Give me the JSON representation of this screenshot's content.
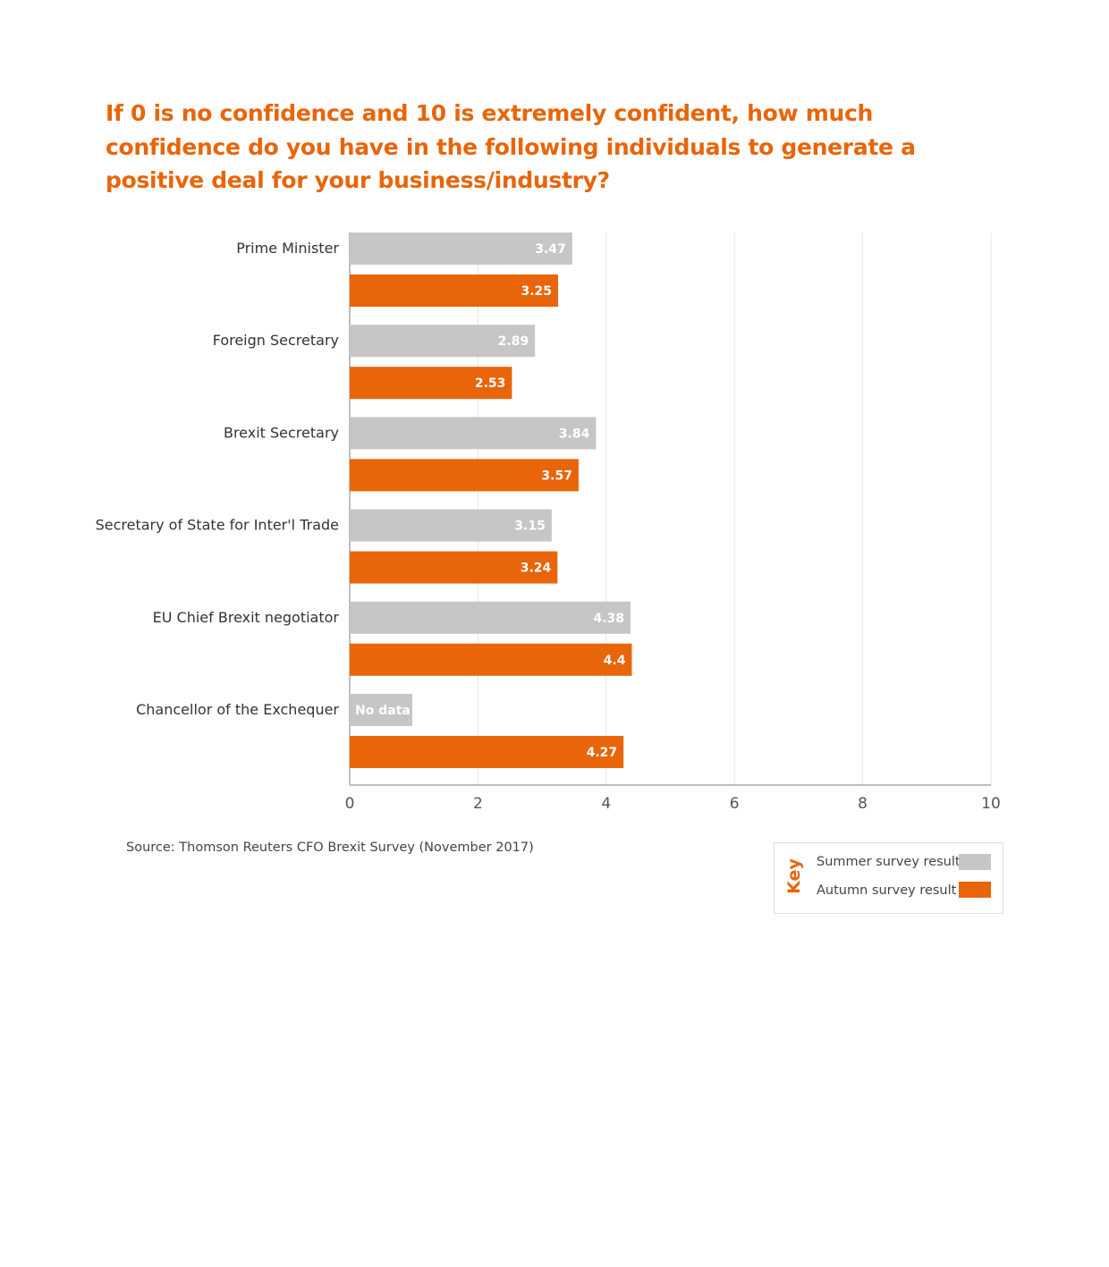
{
  "title": "If 0 is no confidence and 10 is extremely confident, how much confidence do you have in the following individuals to generate a positive deal for your business/industry?",
  "source": "Source: Thomson Reuters CFO Brexit Survey (November 2017)",
  "legend": {
    "title": "Key",
    "summer": "Summer survey result",
    "autumn": "Autumn survey result"
  },
  "colors": {
    "summer": "#C6C6C6",
    "autumn": "#E8650A",
    "title": "#E8650A"
  },
  "chart_data": {
    "type": "bar",
    "orientation": "horizontal",
    "title": "If 0 is no confidence and 10 is extremely confident, how much confidence do you have in the following individuals to generate a positive deal for your business/industry?",
    "categories": [
      "Prime Minister",
      "Foreign Secretary",
      "Brexit Secretary",
      "Secretary of State for Inter'l Trade",
      "EU Chief Brexit negotiator",
      "Chancellor of the Exchequer"
    ],
    "series": [
      {
        "name": "Summer survey result",
        "values": [
          3.47,
          2.89,
          3.84,
          3.15,
          4.38,
          null
        ],
        "labels": [
          "3.47",
          "2.89",
          "3.84",
          "3.15",
          "4.38",
          "No data"
        ]
      },
      {
        "name": "Autumn survey result",
        "values": [
          3.25,
          2.53,
          3.57,
          3.24,
          4.4,
          4.27
        ],
        "labels": [
          "3.25",
          "2.53",
          "3.57",
          "3.24",
          "4.4",
          "4.27"
        ]
      }
    ],
    "xlim": [
      0,
      10
    ],
    "xticks": [
      "0",
      "2",
      "4",
      "6",
      "8",
      "10"
    ],
    "grid": true,
    "legend_position": "bottom-right"
  }
}
